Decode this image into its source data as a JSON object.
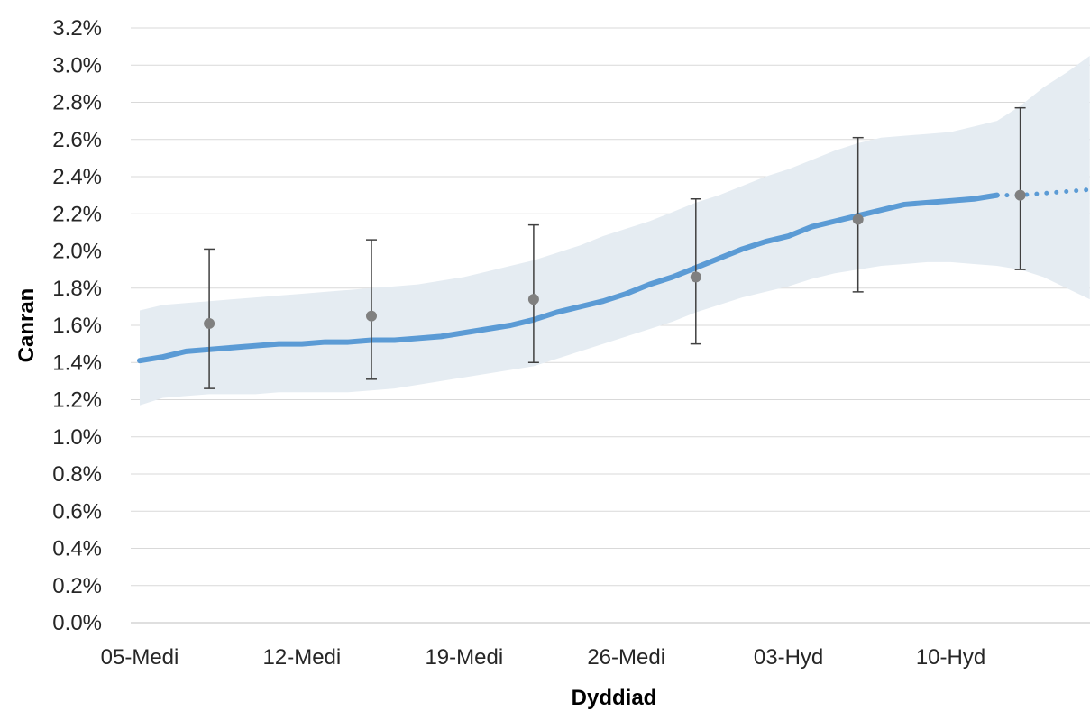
{
  "chart_data": {
    "type": "line",
    "title": "",
    "xlabel": "Dyddiad",
    "ylabel": "Canran",
    "x_tick_labels": [
      "05-Medi",
      "12-Medi",
      "19-Medi",
      "26-Medi",
      "03-Hyd",
      "10-Hyd"
    ],
    "x_tick_dates": [
      "2020-09-05",
      "2020-09-12",
      "2020-09-19",
      "2020-09-26",
      "2020-10-03",
      "2020-10-10"
    ],
    "x_range": [
      "2020-09-05",
      "2020-10-16"
    ],
    "y_tick_labels": [
      "0.0%",
      "0.2%",
      "0.4%",
      "0.6%",
      "0.8%",
      "1.0%",
      "1.2%",
      "1.4%",
      "1.6%",
      "1.8%",
      "2.0%",
      "2.2%",
      "2.4%",
      "2.6%",
      "2.8%",
      "3.0%",
      "3.2%"
    ],
    "ylim": [
      0,
      3.2
    ],
    "grid": true,
    "colors": {
      "line": "#5b9bd5",
      "band": "#e5ecf2",
      "points": "#808080",
      "errorbars": "#404040",
      "grid": "#d9d9d9"
    },
    "series": [
      {
        "style": "solid",
        "x": [
          "2020-09-05",
          "2020-09-06",
          "2020-09-07",
          "2020-09-08",
          "2020-09-09",
          "2020-09-10",
          "2020-09-11",
          "2020-09-12",
          "2020-09-13",
          "2020-09-14",
          "2020-09-15",
          "2020-09-16",
          "2020-09-17",
          "2020-09-18",
          "2020-09-19",
          "2020-09-20",
          "2020-09-21",
          "2020-09-22",
          "2020-09-23",
          "2020-09-24",
          "2020-09-25",
          "2020-09-26",
          "2020-09-27",
          "2020-09-28",
          "2020-09-29",
          "2020-09-30",
          "2020-10-01",
          "2020-10-02",
          "2020-10-03",
          "2020-10-04",
          "2020-10-05",
          "2020-10-06",
          "2020-10-07",
          "2020-10-08",
          "2020-10-09",
          "2020-10-10",
          "2020-10-11",
          "2020-10-12"
        ],
        "y": [
          1.41,
          1.43,
          1.46,
          1.47,
          1.48,
          1.49,
          1.5,
          1.5,
          1.51,
          1.51,
          1.52,
          1.52,
          1.53,
          1.54,
          1.56,
          1.58,
          1.6,
          1.63,
          1.67,
          1.7,
          1.73,
          1.77,
          1.82,
          1.86,
          1.91,
          1.96,
          2.01,
          2.05,
          2.08,
          2.13,
          2.16,
          2.19,
          2.22,
          2.25,
          2.26,
          2.27,
          2.28,
          2.3
        ],
        "band_lower": [
          1.17,
          1.21,
          1.22,
          1.23,
          1.23,
          1.23,
          1.24,
          1.24,
          1.24,
          1.24,
          1.25,
          1.26,
          1.28,
          1.3,
          1.32,
          1.34,
          1.36,
          1.38,
          1.42,
          1.46,
          1.5,
          1.54,
          1.58,
          1.62,
          1.67,
          1.71,
          1.75,
          1.78,
          1.81,
          1.85,
          1.88,
          1.9,
          1.92,
          1.93,
          1.94,
          1.94,
          1.93,
          1.92
        ],
        "band_upper": [
          1.68,
          1.71,
          1.72,
          1.73,
          1.74,
          1.75,
          1.76,
          1.77,
          1.78,
          1.79,
          1.8,
          1.81,
          1.82,
          1.84,
          1.86,
          1.89,
          1.92,
          1.95,
          1.99,
          2.03,
          2.08,
          2.12,
          2.16,
          2.21,
          2.26,
          2.3,
          2.35,
          2.4,
          2.44,
          2.49,
          2.54,
          2.58,
          2.61,
          2.62,
          2.63,
          2.64,
          2.67,
          2.7
        ]
      },
      {
        "style": "dotted",
        "x": [
          "2020-10-12",
          "2020-10-13",
          "2020-10-14",
          "2020-10-15",
          "2020-10-16"
        ],
        "y": [
          2.3,
          2.3,
          2.31,
          2.32,
          2.33
        ],
        "band_lower": [
          1.92,
          1.9,
          1.86,
          1.8,
          1.74
        ],
        "band_upper": [
          2.7,
          2.78,
          2.88,
          2.96,
          3.05
        ]
      }
    ],
    "points": [
      {
        "x": "2020-09-08",
        "y": 1.61,
        "low": 1.26,
        "high": 2.01
      },
      {
        "x": "2020-09-15",
        "y": 1.65,
        "low": 1.31,
        "high": 2.06
      },
      {
        "x": "2020-09-22",
        "y": 1.74,
        "low": 1.4,
        "high": 2.14
      },
      {
        "x": "2020-09-29",
        "y": 1.86,
        "low": 1.5,
        "high": 2.28
      },
      {
        "x": "2020-10-06",
        "y": 2.17,
        "low": 1.78,
        "high": 2.61
      },
      {
        "x": "2020-10-13",
        "y": 2.3,
        "low": 1.9,
        "high": 2.77
      }
    ]
  }
}
